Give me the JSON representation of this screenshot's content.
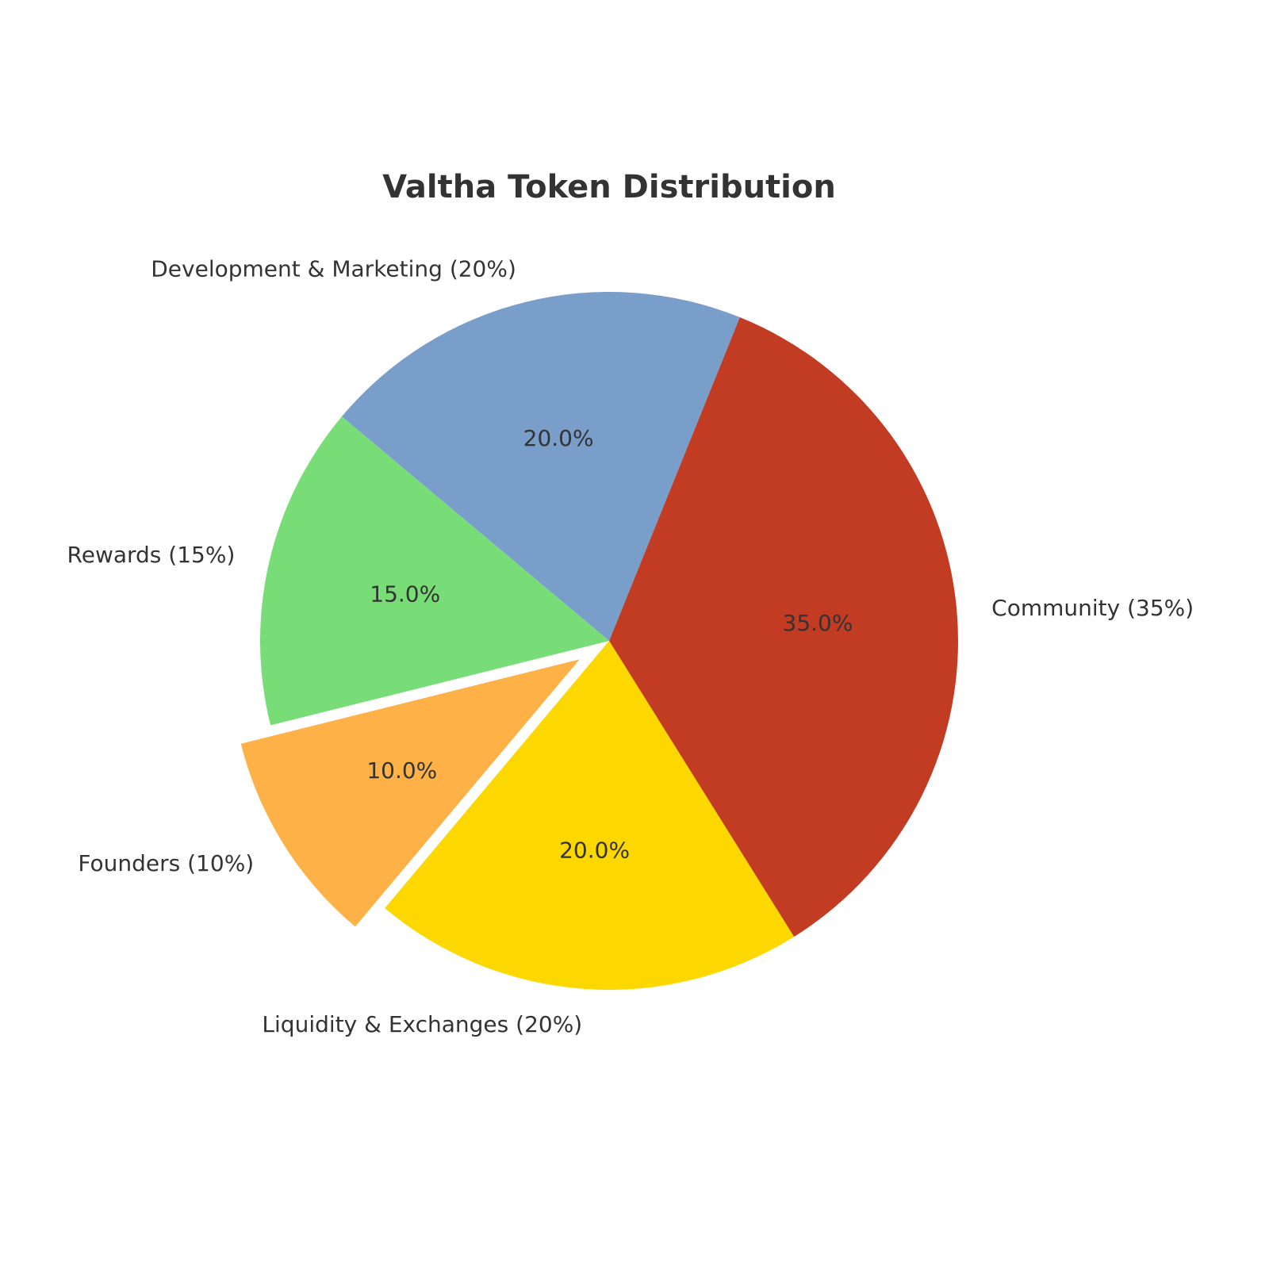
{
  "chart_data": {
    "type": "pie",
    "title": "Valtha Token Distribution",
    "categories": [
      "Community",
      "Development & Marketing",
      "Rewards",
      "Founders",
      "Liquidity & Exchanges"
    ],
    "values": [
      35,
      20,
      15,
      10,
      20
    ],
    "labels": [
      "Community (35%)",
      "Development & Marketing (20%)",
      "Rewards (15%)",
      "Founders (10%)",
      "Liquidity & Exchanges (20%)"
    ],
    "autopct": [
      "35.0%",
      "20.0%",
      "15.0%",
      "10.0%",
      "20.0%"
    ],
    "colors": [
      "#c23b23",
      "#789ec9",
      "#79dd77",
      "#fdb147",
      "#fcd800"
    ],
    "explode": [
      0,
      0,
      0,
      0.1,
      0
    ],
    "start_angle_deg": -58,
    "legend": "none"
  }
}
